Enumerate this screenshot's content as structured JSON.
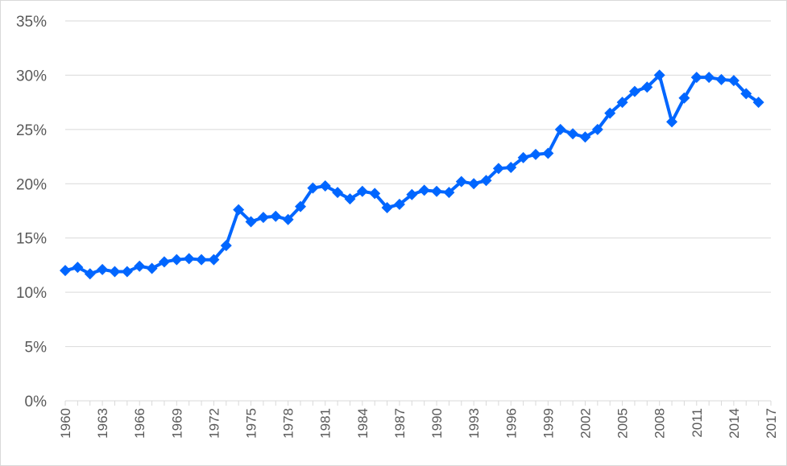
{
  "chart_data": {
    "type": "line",
    "title": "",
    "xlabel": "",
    "ylabel": "",
    "ylim": [
      0,
      35
    ],
    "y_ticks": [
      "0%",
      "5%",
      "10%",
      "15%",
      "20%",
      "25%",
      "30%",
      "35%"
    ],
    "x_tick_labels": [
      "1960",
      "1963",
      "1966",
      "1969",
      "1972",
      "1975",
      "1978",
      "1981",
      "1984",
      "1987",
      "1990",
      "1993",
      "1996",
      "1999",
      "2002",
      "2005",
      "2008",
      "2011",
      "2014",
      "2017"
    ],
    "grid": true,
    "legend": "none",
    "marker": "diamond",
    "color": "#0066FF",
    "x": [
      1960,
      1961,
      1962,
      1963,
      1964,
      1965,
      1966,
      1967,
      1968,
      1969,
      1970,
      1971,
      1972,
      1973,
      1974,
      1975,
      1976,
      1977,
      1978,
      1979,
      1980,
      1981,
      1982,
      1983,
      1984,
      1985,
      1986,
      1987,
      1988,
      1989,
      1990,
      1991,
      1992,
      1993,
      1994,
      1995,
      1996,
      1997,
      1998,
      1999,
      2000,
      2001,
      2002,
      2003,
      2004,
      2005,
      2006,
      2007,
      2008,
      2009,
      2010,
      2011,
      2012,
      2013,
      2014,
      2015,
      2016
    ],
    "series": [
      {
        "values": [
          12.0,
          12.3,
          11.7,
          12.1,
          11.9,
          11.9,
          12.4,
          12.2,
          12.8,
          13.0,
          13.1,
          13.0,
          13.0,
          14.3,
          17.6,
          16.5,
          16.9,
          17.0,
          16.7,
          17.9,
          19.6,
          19.8,
          19.2,
          18.6,
          19.3,
          19.1,
          17.8,
          18.1,
          19.0,
          19.4,
          19.3,
          19.2,
          20.2,
          20.0,
          20.3,
          21.4,
          21.5,
          22.4,
          22.7,
          22.8,
          25.0,
          24.6,
          24.3,
          25.0,
          26.5,
          27.5,
          28.5,
          28.9,
          30.0,
          25.7,
          27.9,
          29.8,
          29.8,
          29.6,
          29.5,
          28.3,
          27.5
        ]
      }
    ]
  }
}
